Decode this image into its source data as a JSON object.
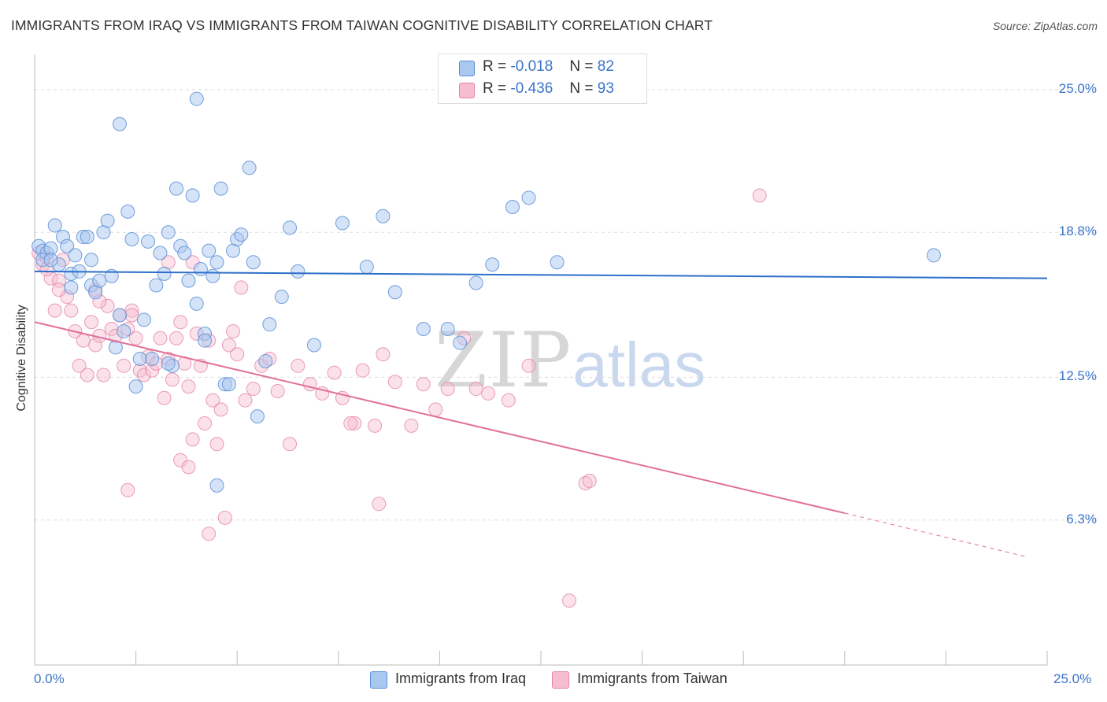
{
  "header": {
    "title": "IMMIGRANTS FROM IRAQ VS IMMIGRANTS FROM TAIWAN COGNITIVE DISABILITY CORRELATION CHART",
    "source": "Source: ZipAtlas.com"
  },
  "watermark": {
    "zip": "ZIP",
    "atlas": "atlas"
  },
  "legend_top": [
    {
      "r_label": "R =",
      "r_value": "-0.018",
      "n_label": "N =",
      "n_value": "82"
    },
    {
      "r_label": "R =",
      "r_value": "-0.436",
      "n_label": "N =",
      "n_value": "93"
    }
  ],
  "colors": {
    "iraq_fill": "#a9c8f0",
    "iraq_stroke": "#5b8fd6",
    "iraq_line": "#2e6fc9",
    "taiwan_fill": "#f6bcd0",
    "taiwan_stroke": "#e486a8",
    "taiwan_line": "#e0709a",
    "tick_text": "#3a74c9",
    "grid": "#dddddd"
  },
  "chart_data": {
    "type": "scatter",
    "title": "IMMIGRANTS FROM IRAQ VS IMMIGRANTS FROM TAIWAN COGNITIVE DISABILITY CORRELATION CHART",
    "xlabel": "",
    "ylabel": "Cognitive Disability",
    "xlim": [
      0,
      25
    ],
    "ylim": [
      0,
      26.5
    ],
    "x_tick_labels": [
      "0.0%",
      "25.0%"
    ],
    "y_ticks": [
      {
        "value": 6.3,
        "label": "6.3%"
      },
      {
        "value": 12.5,
        "label": "12.5%"
      },
      {
        "value": 18.8,
        "label": "18.8%"
      },
      {
        "value": 25.0,
        "label": "25.0%"
      }
    ],
    "grid": true,
    "legend_position": "bottom",
    "series": [
      {
        "name": "Immigrants from Iraq",
        "r": -0.018,
        "n": 82,
        "trend": {
          "x1": 0,
          "y1": 17.1,
          "x2": 25,
          "y2": 16.8
        },
        "points": [
          [
            0.1,
            18.2
          ],
          [
            0.2,
            18.0
          ],
          [
            0.3,
            17.9
          ],
          [
            0.2,
            17.6
          ],
          [
            0.4,
            18.1
          ],
          [
            0.5,
            19.1
          ],
          [
            0.6,
            17.4
          ],
          [
            0.7,
            18.6
          ],
          [
            0.8,
            18.2
          ],
          [
            0.9,
            17.0
          ],
          [
            1.0,
            17.8
          ],
          [
            1.1,
            17.1
          ],
          [
            1.2,
            18.6
          ],
          [
            1.3,
            18.6
          ],
          [
            1.4,
            16.5
          ],
          [
            1.5,
            16.2
          ],
          [
            1.6,
            16.7
          ],
          [
            1.7,
            18.8
          ],
          [
            1.8,
            19.3
          ],
          [
            1.9,
            16.9
          ],
          [
            2.0,
            13.8
          ],
          [
            2.1,
            15.2
          ],
          [
            2.2,
            14.5
          ],
          [
            2.3,
            19.7
          ],
          [
            2.4,
            18.5
          ],
          [
            2.5,
            12.1
          ],
          [
            2.6,
            13.3
          ],
          [
            2.7,
            15.0
          ],
          [
            2.8,
            18.4
          ],
          [
            2.9,
            13.3
          ],
          [
            3.0,
            16.5
          ],
          [
            3.1,
            17.9
          ],
          [
            3.2,
            17.0
          ],
          [
            3.3,
            18.8
          ],
          [
            3.4,
            13.0
          ],
          [
            3.5,
            20.7
          ],
          [
            3.6,
            18.2
          ],
          [
            3.7,
            17.9
          ],
          [
            3.8,
            16.7
          ],
          [
            3.9,
            20.4
          ],
          [
            4.0,
            15.7
          ],
          [
            4.1,
            17.2
          ],
          [
            4.2,
            14.4
          ],
          [
            4.3,
            18.0
          ],
          [
            4.4,
            16.9
          ],
          [
            4.5,
            17.5
          ],
          [
            4.6,
            20.7
          ],
          [
            4.7,
            12.2
          ],
          [
            4.8,
            12.2
          ],
          [
            4.9,
            18.0
          ],
          [
            5.0,
            18.5
          ],
          [
            5.1,
            18.7
          ],
          [
            5.3,
            21.6
          ],
          [
            5.4,
            17.5
          ],
          [
            5.5,
            10.8
          ],
          [
            5.7,
            13.2
          ],
          [
            5.8,
            14.8
          ],
          [
            6.1,
            16.0
          ],
          [
            6.3,
            19.0
          ],
          [
            6.5,
            17.1
          ],
          [
            6.9,
            13.9
          ],
          [
            7.6,
            19.2
          ],
          [
            8.2,
            17.3
          ],
          [
            8.6,
            19.5
          ],
          [
            8.9,
            16.2
          ],
          [
            9.6,
            14.6
          ],
          [
            10.2,
            14.6
          ],
          [
            10.5,
            14.0
          ],
          [
            10.9,
            16.6
          ],
          [
            11.3,
            17.4
          ],
          [
            11.8,
            19.9
          ],
          [
            12.2,
            20.3
          ],
          [
            12.9,
            17.5
          ],
          [
            22.2,
            17.8
          ],
          [
            2.1,
            23.5
          ],
          [
            4.0,
            24.6
          ],
          [
            4.5,
            7.8
          ],
          [
            4.2,
            14.1
          ],
          [
            3.3,
            13.1
          ],
          [
            1.4,
            17.6
          ],
          [
            0.4,
            17.6
          ],
          [
            0.9,
            16.4
          ]
        ]
      },
      {
        "name": "Immigrants from Taiwan",
        "r": -0.436,
        "n": 93,
        "trend": {
          "x1": 0,
          "y1": 14.9,
          "x2": 20,
          "y2": 6.6
        },
        "trend_dashed": {
          "x1": 20,
          "y1": 6.6,
          "x2": 24.5,
          "y2": 4.7
        },
        "points": [
          [
            0.1,
            17.9
          ],
          [
            0.2,
            17.4
          ],
          [
            0.3,
            17.7
          ],
          [
            0.4,
            16.8
          ],
          [
            0.5,
            15.4
          ],
          [
            0.6,
            16.7
          ],
          [
            0.7,
            17.6
          ],
          [
            0.8,
            16.0
          ],
          [
            0.9,
            15.4
          ],
          [
            1.0,
            14.5
          ],
          [
            1.1,
            13.0
          ],
          [
            1.2,
            14.1
          ],
          [
            1.3,
            12.6
          ],
          [
            1.4,
            14.9
          ],
          [
            1.5,
            13.9
          ],
          [
            1.6,
            14.3
          ],
          [
            1.7,
            12.6
          ],
          [
            1.8,
            15.6
          ],
          [
            1.9,
            14.6
          ],
          [
            2.0,
            14.3
          ],
          [
            2.1,
            15.2
          ],
          [
            2.2,
            13.0
          ],
          [
            2.3,
            14.6
          ],
          [
            2.4,
            15.4
          ],
          [
            2.5,
            14.2
          ],
          [
            2.6,
            12.8
          ],
          [
            2.7,
            12.6
          ],
          [
            2.8,
            13.4
          ],
          [
            2.9,
            12.8
          ],
          [
            3.0,
            13.1
          ],
          [
            3.1,
            14.2
          ],
          [
            3.2,
            11.6
          ],
          [
            3.3,
            13.3
          ],
          [
            3.4,
            12.4
          ],
          [
            3.5,
            14.2
          ],
          [
            3.6,
            14.9
          ],
          [
            3.7,
            13.1
          ],
          [
            3.8,
            12.1
          ],
          [
            3.9,
            9.8
          ],
          [
            4.0,
            14.4
          ],
          [
            4.1,
            13.0
          ],
          [
            4.2,
            10.5
          ],
          [
            4.3,
            14.1
          ],
          [
            4.4,
            11.5
          ],
          [
            4.5,
            9.6
          ],
          [
            4.6,
            11.1
          ],
          [
            4.7,
            6.4
          ],
          [
            4.8,
            13.9
          ],
          [
            4.9,
            14.5
          ],
          [
            5.0,
            13.5
          ],
          [
            5.2,
            11.5
          ],
          [
            5.4,
            12.0
          ],
          [
            5.6,
            13.0
          ],
          [
            5.8,
            13.3
          ],
          [
            6.0,
            11.9
          ],
          [
            6.3,
            9.6
          ],
          [
            6.5,
            13.0
          ],
          [
            6.8,
            12.2
          ],
          [
            7.1,
            11.8
          ],
          [
            7.4,
            12.7
          ],
          [
            7.6,
            11.6
          ],
          [
            7.9,
            10.5
          ],
          [
            8.1,
            12.8
          ],
          [
            8.4,
            10.4
          ],
          [
            8.6,
            13.5
          ],
          [
            8.9,
            12.3
          ],
          [
            9.3,
            10.4
          ],
          [
            9.6,
            12.2
          ],
          [
            9.9,
            11.1
          ],
          [
            10.2,
            12.0
          ],
          [
            10.6,
            14.2
          ],
          [
            10.9,
            12.0
          ],
          [
            11.2,
            11.8
          ],
          [
            11.7,
            11.5
          ],
          [
            12.2,
            13.0
          ],
          [
            13.6,
            7.9
          ],
          [
            13.7,
            8.0
          ],
          [
            17.9,
            20.4
          ],
          [
            2.3,
            7.6
          ],
          [
            3.6,
            8.9
          ],
          [
            3.8,
            8.6
          ],
          [
            4.3,
            5.7
          ],
          [
            13.2,
            2.8
          ],
          [
            8.5,
            7.0
          ],
          [
            7.8,
            10.5
          ],
          [
            5.1,
            16.4
          ],
          [
            3.3,
            17.5
          ],
          [
            0.3,
            17.2
          ],
          [
            1.6,
            15.8
          ],
          [
            2.4,
            15.2
          ],
          [
            1.5,
            16.3
          ],
          [
            0.6,
            16.3
          ],
          [
            3.9,
            17.5
          ]
        ]
      }
    ]
  }
}
